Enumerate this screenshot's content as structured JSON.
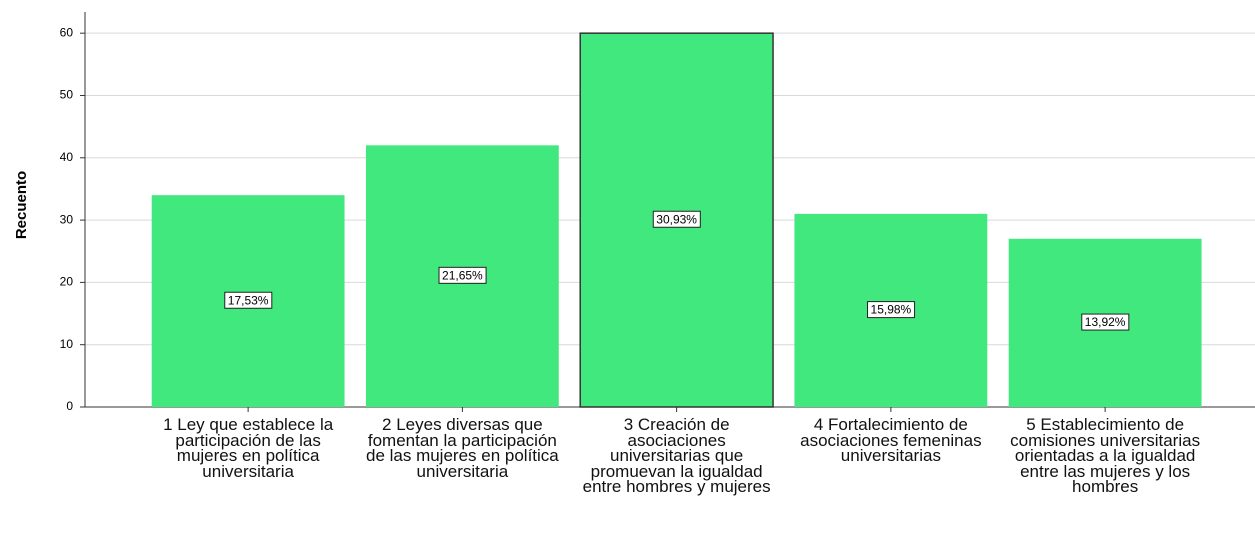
{
  "chart_data": {
    "type": "bar",
    "y_label": "Recuento",
    "categories": [
      "1 Ley  que establece la participación de las mujeres en política universitaria",
      "2 Leyes diversas que fomentan la participación de las mujeres en política universitaria",
      "3 Creación de asociaciones universitarias que promuevan la igualdad entre hombres y mujeres",
      "4 Fortalecimiento de asociaciones femeninas universitarias",
      "5 Establecimiento de comisiones universitarias orientadas a la igualdad entre las mujeres y los hombres"
    ],
    "values": [
      34,
      42,
      60,
      31,
      27
    ],
    "percent_labels": [
      "17,53%",
      "21,65%",
      "30,93%",
      "15,98%",
      "13,92%"
    ],
    "color": "#41e87d",
    "ylim": [
      0,
      63.4
    ],
    "yticks": [
      0,
      10,
      20,
      30,
      40,
      50,
      60
    ],
    "grid": true
  }
}
